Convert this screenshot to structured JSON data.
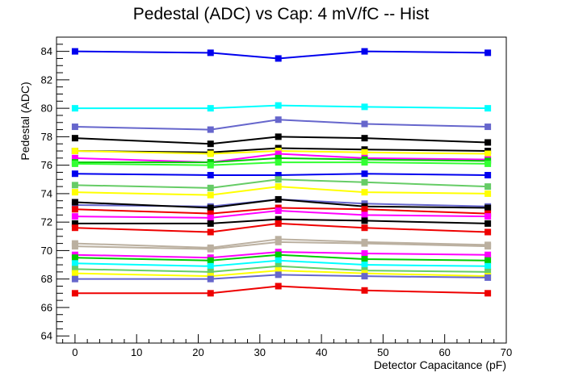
{
  "chart_data": {
    "type": "line",
    "title": "Pedestal (ADC) vs Cap: 4 mV/fC -- Hist",
    "xlabel": "Detector Capacitance (pF)",
    "ylabel": "Pedestal (ADC)",
    "xlim": [
      -3,
      70
    ],
    "ylim": [
      63.5,
      85
    ],
    "x_ticks": [
      0,
      10,
      20,
      30,
      40,
      50,
      60,
      70
    ],
    "y_ticks": [
      64,
      66,
      68,
      70,
      72,
      74,
      76,
      78,
      80,
      82,
      84
    ],
    "grid": false,
    "legend": "none",
    "marker": "square",
    "x": [
      0,
      22,
      33,
      47,
      67
    ],
    "series": [
      {
        "color": "#0000ee",
        "values": [
          84.0,
          83.9,
          83.5,
          84.0,
          83.9
        ]
      },
      {
        "color": "#00ffff",
        "values": [
          80.0,
          80.0,
          80.2,
          80.1,
          80.0
        ]
      },
      {
        "color": "#6666cc",
        "values": [
          78.7,
          78.5,
          79.2,
          78.9,
          78.7
        ]
      },
      {
        "color": "#000000",
        "values": [
          77.9,
          77.5,
          78.0,
          77.9,
          77.6
        ]
      },
      {
        "color": "#000000",
        "values": [
          77.0,
          76.9,
          77.2,
          77.1,
          77.0
        ]
      },
      {
        "color": "#ffff00",
        "values": [
          77.0,
          76.8,
          77.0,
          76.9,
          76.8
        ]
      },
      {
        "color": "#ff00ff",
        "values": [
          76.5,
          76.2,
          76.8,
          76.5,
          76.4
        ]
      },
      {
        "color": "#00cc00",
        "values": [
          76.2,
          76.2,
          76.5,
          76.4,
          76.3
        ]
      },
      {
        "color": "#33ff33",
        "values": [
          76.1,
          76.0,
          76.2,
          76.2,
          76.1
        ]
      },
      {
        "color": "#0000ee",
        "values": [
          75.4,
          75.3,
          75.3,
          75.4,
          75.3
        ]
      },
      {
        "color": "#66cc66",
        "values": [
          74.6,
          74.4,
          75.0,
          74.8,
          74.5
        ]
      },
      {
        "color": "#ffff00",
        "values": [
          74.1,
          73.9,
          74.5,
          74.1,
          74.0
        ]
      },
      {
        "color": "#6666cc",
        "values": [
          73.2,
          73.1,
          73.6,
          73.3,
          73.1
        ]
      },
      {
        "color": "#000000",
        "values": [
          73.4,
          73.0,
          73.6,
          73.1,
          73.0
        ]
      },
      {
        "color": "#ee0000",
        "values": [
          72.9,
          72.6,
          73.0,
          72.9,
          72.6
        ]
      },
      {
        "color": "#ff00ff",
        "values": [
          72.4,
          72.3,
          72.8,
          72.5,
          72.4
        ]
      },
      {
        "color": "#000000",
        "values": [
          71.9,
          71.9,
          72.2,
          72.1,
          71.9
        ]
      },
      {
        "color": "#ee0000",
        "values": [
          71.6,
          71.3,
          71.9,
          71.6,
          71.3
        ]
      },
      {
        "color": "#bbb0a0",
        "values": [
          70.5,
          70.2,
          70.8,
          70.6,
          70.4
        ]
      },
      {
        "color": "#bbb0a0",
        "values": [
          70.3,
          70.1,
          70.6,
          70.5,
          70.3
        ]
      },
      {
        "color": "#ff00ff",
        "values": [
          69.7,
          69.5,
          69.9,
          69.8,
          69.7
        ]
      },
      {
        "color": "#00cc00",
        "values": [
          69.5,
          69.3,
          69.7,
          69.4,
          69.3
        ]
      },
      {
        "color": "#00ffff",
        "values": [
          69.1,
          68.9,
          69.3,
          69.0,
          68.9
        ]
      },
      {
        "color": "#66cc66",
        "values": [
          68.7,
          68.5,
          68.9,
          68.6,
          68.5
        ]
      },
      {
        "color": "#ffff00",
        "values": [
          68.4,
          68.2,
          68.6,
          68.4,
          68.2
        ]
      },
      {
        "color": "#6666cc",
        "values": [
          68.0,
          68.0,
          68.3,
          68.2,
          68.1
        ]
      },
      {
        "color": "#ee0000",
        "values": [
          67.0,
          67.0,
          67.5,
          67.2,
          67.0
        ]
      }
    ]
  }
}
